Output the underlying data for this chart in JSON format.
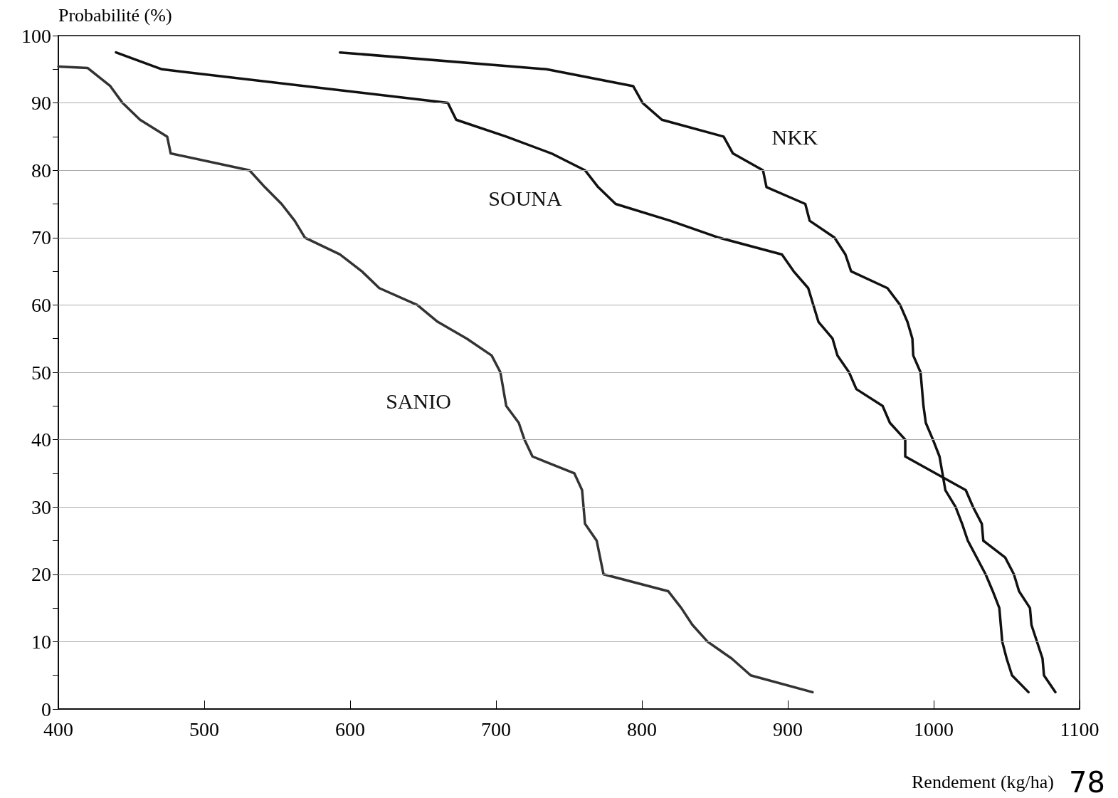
{
  "chart_data": {
    "type": "line",
    "xlabel": "Rendement (kg/ha)",
    "ylabel": "Probabilité (%)",
    "xlim": [
      400,
      1100
    ],
    "xticks": [
      400,
      500,
      600,
      700,
      800,
      900,
      1000,
      1100
    ],
    "ylim": [
      0,
      100
    ],
    "yticks": [
      0,
      {
        "value": 5,
        "label": null
      },
      10,
      {
        "value": 15,
        "label": null
      },
      20,
      {
        "value": 25,
        "label": null
      },
      30,
      {
        "value": 35,
        "label": null
      },
      40,
      {
        "value": 45,
        "label": null
      },
      50,
      {
        "value": 55,
        "label": null
      },
      60,
      {
        "value": 65,
        "label": null
      },
      70,
      {
        "value": 75,
        "label": null
      },
      80,
      {
        "value": 85,
        "label": null
      },
      90,
      {
        "value": 95,
        "label": null
      },
      100
    ],
    "grid": "y",
    "marker": "none",
    "line_style": "solid",
    "series": [
      {
        "name": "SANIO",
        "color": "#333333",
        "x": [
          400,
          420,
          435.6,
          444,
          456,
          474.6,
          477,
          531,
          541.5,
          553,
          562,
          569,
          593,
          608,
          620,
          646,
          660,
          680,
          697,
          703,
          707,
          715.6,
          719.5,
          725,
          753.7,
          759,
          761,
          769,
          773.7,
          818,
          827,
          834.6,
          845,
          861.5,
          874.6,
          917
        ],
        "values": [
          95.4,
          95.2,
          92.5,
          90,
          87.5,
          85,
          82.5,
          80,
          77.5,
          75,
          72.5,
          70,
          67.5,
          65,
          62.5,
          60,
          57.5,
          55,
          52.5,
          50,
          45,
          42.5,
          40,
          37.5,
          35,
          32.5,
          27.5,
          25,
          20,
          17.5,
          15,
          12.5,
          10,
          7.5,
          5,
          2.5
        ]
      },
      {
        "name": "SOUNA",
        "color": "#111111",
        "x": [
          439.5,
          471,
          667,
          672.7,
          707,
          738,
          761,
          770,
          782,
          819.5,
          852.7,
          896,
          904,
          914,
          921,
          930.7,
          934,
          942,
          947,
          965,
          970,
          980.5,
          980.5,
          1022,
          1027,
          1033,
          1034,
          1049,
          1055,
          1058.5,
          1066,
          1067,
          1074.6,
          1075.6,
          1083.4
        ],
        "values": [
          97.5,
          95,
          90,
          87.5,
          85,
          82.5,
          80,
          77.5,
          75,
          72.5,
          70,
          67.5,
          65,
          62.5,
          57.5,
          55,
          52.5,
          50,
          47.5,
          45,
          42.5,
          40,
          37.5,
          32.5,
          30,
          27.5,
          25,
          22.5,
          20,
          17.5,
          15,
          12.5,
          7.5,
          5,
          2.5
        ]
      },
      {
        "name": "NKK",
        "color": "#111111",
        "x": [
          593,
          734.6,
          794,
          800.5,
          813.7,
          856,
          862.4,
          883,
          885.4,
          912,
          915,
          932,
          939.5,
          943.4,
          968.3,
          977,
          982,
          985.4,
          986,
          991,
          993,
          994.6,
          999.5,
          1004,
          1008,
          1015,
          1019.5,
          1023.4,
          1035.6,
          1040.5,
          1045,
          1046,
          1047,
          1050,
          1053.7,
          1065
        ],
        "values": [
          97.5,
          95,
          92.5,
          90,
          87.5,
          85,
          82.5,
          80,
          77.5,
          75,
          72.5,
          70,
          67.5,
          65,
          62.5,
          60,
          57.5,
          55,
          52.5,
          50,
          45,
          42.5,
          40,
          37.5,
          32.5,
          30,
          27.5,
          25,
          20,
          17.5,
          15,
          12.5,
          10,
          7.5,
          5,
          2.5
        ]
      }
    ],
    "annotations": [
      "78"
    ]
  }
}
